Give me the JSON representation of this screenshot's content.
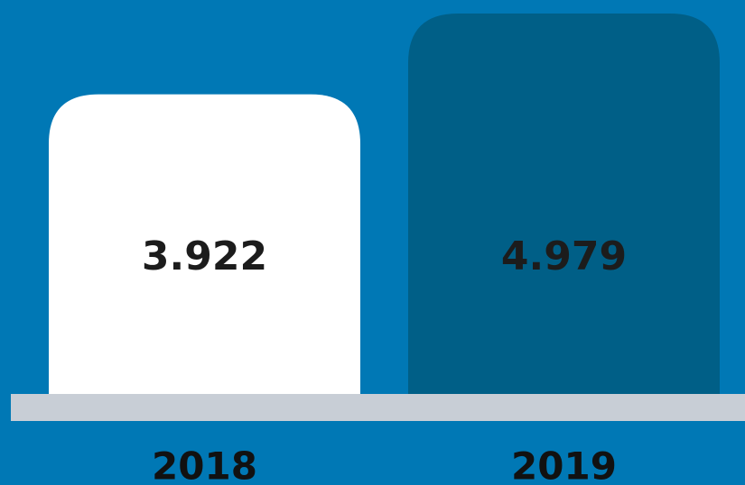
{
  "chart_data": {
    "type": "bar",
    "categories": [
      "2018",
      "2019"
    ],
    "values": [
      3.922,
      4.979
    ],
    "colors": [
      "#ffffff",
      "#005f87"
    ],
    "background": "#0078b5",
    "baseline_color": "#c8ced6"
  }
}
